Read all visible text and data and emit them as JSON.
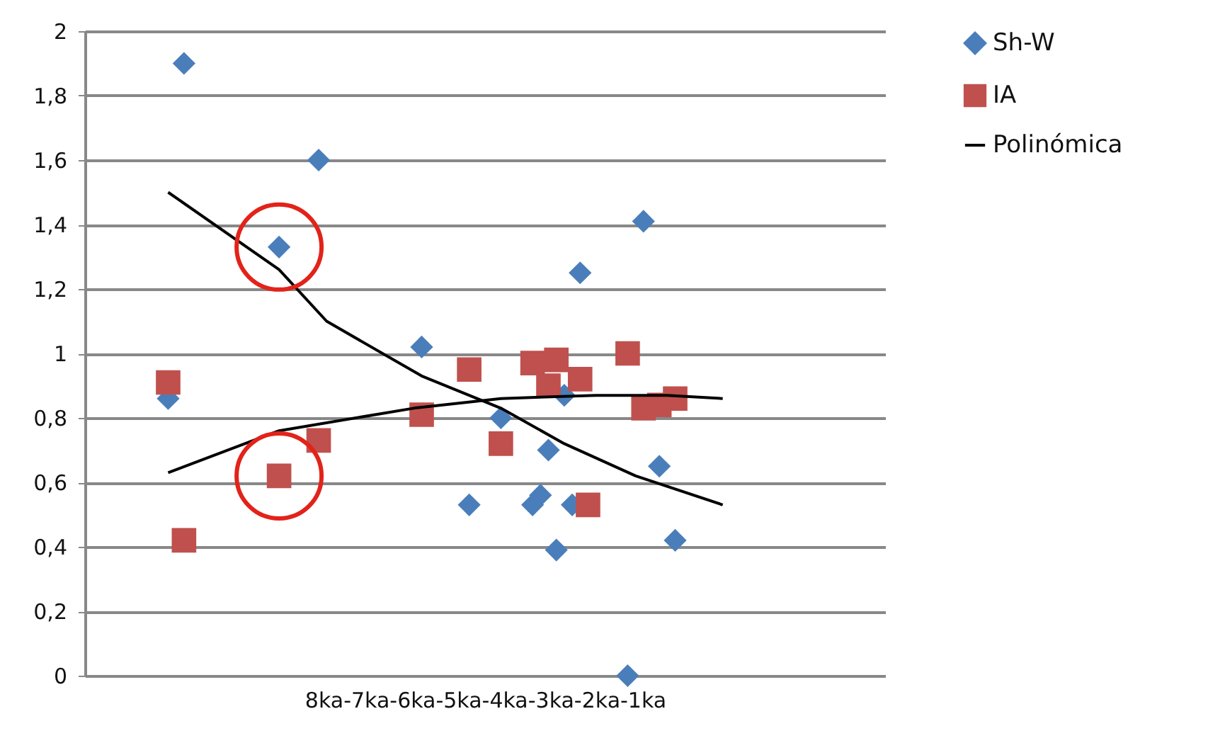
{
  "chart_data": {
    "type": "scatter",
    "xlabel": "8ka-7ka-6ka-5ka-4ka-3ka-2ka-1ka",
    "categories": [
      null,
      null,
      null,
      null,
      null,
      null,
      null,
      null,
      null,
      null,
      null,
      null,
      null,
      null,
      null,
      null,
      null,
      null,
      null,
      null,
      null,
      null,
      null,
      null,
      null,
      null,
      null,
      null,
      null,
      null,
      null,
      null,
      null,
      null,
      null,
      null,
      null,
      null,
      null,
      null,
      null,
      null,
      null,
      null,
      null,
      null,
      null,
      null,
      null,
      null,
      null,
      null,
      null,
      null,
      null,
      null,
      null,
      null,
      null,
      null,
      null,
      null,
      null,
      null,
      null,
      null,
      null,
      null,
      null,
      null,
      null,
      null,
      null,
      null,
      null,
      null,
      null,
      null,
      null,
      null,
      null,
      null,
      null,
      null,
      null,
      null,
      null,
      null,
      null,
      null,
      null,
      null,
      null,
      null,
      null,
      null,
      null,
      null,
      null,
      null,
      null
    ],
    "ylim": [
      0,
      2
    ],
    "yticks": [
      0,
      {
        "value": 0.2,
        "label": "0,2"
      },
      {
        "value": 0.4,
        "label": "0,4"
      },
      {
        "value": 0.6,
        "label": "0,6"
      },
      {
        "value": 0.8,
        "label": "0,8"
      },
      1,
      {
        "value": 1.2,
        "label": "1,2"
      },
      {
        "value": 1.4,
        "label": "1,4"
      },
      {
        "value": 1.6,
        "label": "1,6"
      },
      {
        "value": 1.8,
        "label": "1,8"
      },
      2
    ],
    "grid": "y",
    "legend": "right",
    "series": [
      {
        "name": "Sh-W",
        "marker": "diamond",
        "color": "#4a7ebb",
        "values": [
          null,
          null,
          null,
          null,
          null,
          null,
          null,
          null,
          null,
          null,
          0.86,
          null,
          1.9,
          null,
          null,
          null,
          null,
          null,
          null,
          null,
          null,
          null,
          null,
          null,
          1.33,
          null,
          null,
          null,
          null,
          1.6,
          null,
          null,
          null,
          null,
          null,
          null,
          null,
          null,
          null,
          null,
          null,
          null,
          1.02,
          null,
          null,
          null,
          null,
          null,
          0.53,
          null,
          null,
          null,
          0.8,
          null,
          null,
          null,
          0.53,
          0.56,
          0.7,
          0.39,
          0.87,
          0.53,
          1.25,
          null,
          null,
          null,
          null,
          null,
          0,
          null,
          1.41,
          null,
          0.65,
          null,
          0.42,
          null,
          null,
          null,
          null,
          null,
          null,
          null,
          null,
          null,
          null,
          null,
          null,
          null,
          null,
          null,
          null,
          null,
          null,
          null,
          null,
          null,
          null,
          null,
          null,
          null,
          null
        ]
      },
      {
        "name": "IA",
        "marker": "square",
        "color": "#c0504d",
        "values": [
          null,
          null,
          null,
          null,
          null,
          null,
          null,
          null,
          null,
          null,
          0.91,
          null,
          0.42,
          null,
          null,
          null,
          null,
          null,
          null,
          null,
          null,
          null,
          null,
          null,
          0.62,
          null,
          null,
          null,
          null,
          0.73,
          null,
          null,
          null,
          null,
          null,
          null,
          null,
          null,
          null,
          null,
          null,
          null,
          0.81,
          null,
          null,
          null,
          null,
          null,
          0.95,
          null,
          null,
          null,
          0.72,
          null,
          null,
          null,
          0.97,
          null,
          0.9,
          0.98,
          null,
          null,
          0.92,
          0.53,
          null,
          null,
          null,
          null,
          1,
          null,
          0.83,
          null,
          0.84,
          null,
          0.86,
          null,
          null,
          null,
          null,
          null,
          null,
          null,
          null,
          null,
          null,
          null,
          null,
          null,
          null,
          null,
          null,
          null,
          null,
          null,
          null,
          null,
          null,
          null,
          null,
          null,
          null
        ]
      },
      {
        "name": "Polinómica",
        "type": "line",
        "marker": "none",
        "color": "#000000",
        "values": [
          null,
          null,
          null,
          null,
          null,
          null,
          null,
          null,
          null,
          null,
          1.5,
          null,
          null,
          null,
          null,
          null,
          null,
          null,
          null,
          null,
          null,
          null,
          null,
          null,
          1.26,
          null,
          null,
          null,
          null,
          null,
          1.1,
          null,
          null,
          null,
          null,
          null,
          null,
          null,
          null,
          null,
          null,
          null,
          0.93,
          null,
          null,
          null,
          null,
          null,
          null,
          null,
          null,
          null,
          0.83,
          null,
          null,
          null,
          null,
          null,
          null,
          null,
          0.72,
          null,
          null,
          null,
          null,
          null,
          null,
          null,
          null,
          0.62,
          null,
          null,
          null,
          null,
          null,
          null,
          null,
          null,
          null,
          null,
          0.53,
          null,
          null,
          null,
          null,
          null,
          null,
          null,
          null,
          null,
          null,
          null,
          null,
          null,
          null,
          null,
          null,
          null,
          null,
          null,
          null
        ]
      },
      {
        "type": "line",
        "marker": "none",
        "color": "#000000",
        "values": [
          null,
          null,
          null,
          null,
          null,
          null,
          null,
          null,
          null,
          null,
          0.63,
          null,
          null,
          null,
          null,
          null,
          null,
          null,
          null,
          null,
          null,
          null,
          null,
          null,
          0.76,
          null,
          null,
          null,
          null,
          null,
          null,
          null,
          null,
          null,
          null,
          null,
          null,
          null,
          null,
          null,
          null,
          0.83,
          null,
          null,
          null,
          null,
          null,
          null,
          null,
          null,
          null,
          null,
          0.86,
          null,
          null,
          null,
          null,
          null,
          null,
          null,
          null,
          null,
          null,
          null,
          0.87,
          null,
          null,
          null,
          null,
          null,
          null,
          null,
          null,
          0.87,
          null,
          null,
          null,
          null,
          null,
          null,
          0.86,
          null,
          null,
          null,
          null,
          null,
          null,
          null,
          null,
          null,
          null,
          null,
          null,
          null,
          null,
          null,
          null,
          null,
          null,
          null,
          null
        ]
      }
    ]
  }
}
